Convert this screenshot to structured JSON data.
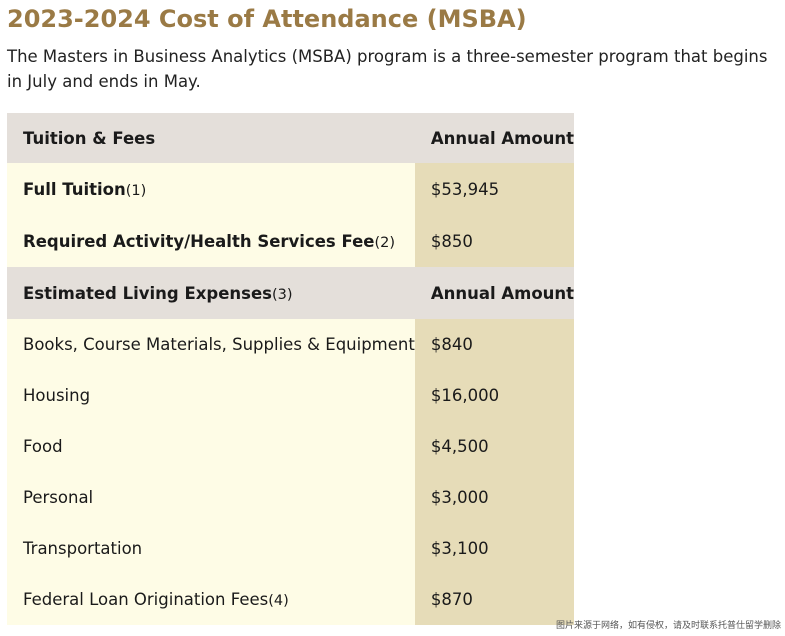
{
  "page": {
    "title": "2023-2024 Cost of Attendance (MSBA)",
    "intro": "The Masters in Business Analytics (MSBA) program is a three-semester program that begins in July and ends in May."
  },
  "table": {
    "tuition_header": {
      "label": "Tuition & Fees",
      "amount_label": "Annual Amount"
    },
    "tuition_rows": [
      {
        "label": "Full Tuition",
        "note": "(1)",
        "amount": "$53,945"
      },
      {
        "label": "Required Activity/Health Services Fee",
        "note": "(2)",
        "amount": "$850"
      }
    ],
    "living_header": {
      "label": "Estimated Living Expenses",
      "note": "(3)",
      "amount_label": "Annual Amount"
    },
    "living_rows": [
      {
        "label": "Books, Course Materials, Supplies & Equipment",
        "amount": "$840"
      },
      {
        "label": "Housing",
        "amount": "$16,000"
      },
      {
        "label": "Food",
        "amount": "$4,500"
      },
      {
        "label": "Personal",
        "amount": "$3,000"
      },
      {
        "label": "Transportation",
        "amount": "$3,100"
      },
      {
        "label": "Federal Loan Origination Fees",
        "note": "(4)",
        "amount": "$870"
      }
    ]
  },
  "watermark": "图片来源于网络，如有侵权，请及时联系托普仕留学删除",
  "colors": {
    "title": "#9a7a45",
    "header_bg": "#e4dfda",
    "label_bg": "#fefce6",
    "amount_bg": "#e6dcb8"
  }
}
